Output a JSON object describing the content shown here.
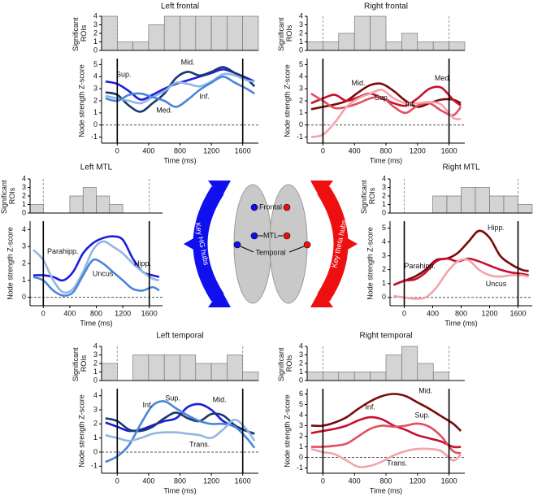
{
  "chart_data": [
    {
      "type": "histogram",
      "title": "Left frontal",
      "ylabel": "Significant ROIs",
      "bins": [
        -200,
        0,
        200,
        400,
        600,
        800,
        1000,
        1200,
        1400,
        1600,
        1800
      ],
      "values": [
        4,
        1,
        1,
        3,
        4,
        4,
        4,
        4,
        4,
        4
      ],
      "color": "#d4d4d4",
      "ylim": [
        0,
        4
      ],
      "yticks": [
        0,
        1,
        2,
        3,
        4
      ]
    },
    {
      "type": "line",
      "xlabel": "Time (ms)",
      "ylabel": "Node strength Z-score",
      "x": [
        -150,
        0,
        150,
        300,
        450,
        600,
        750,
        900,
        1050,
        1200,
        1350,
        1500,
        1650,
        1750
      ],
      "xlim": [
        -200,
        1800
      ],
      "xticks": [
        0,
        400,
        800,
        1200,
        1600
      ],
      "ylim": [
        -1.5,
        5.5
      ],
      "yticks": [
        -1,
        0,
        1,
        2,
        3,
        4,
        5
      ],
      "series": [
        {
          "name": "Sup.",
          "color": "#1c1ce0",
          "values": [
            3.6,
            3.4,
            2.8,
            2.1,
            2.5,
            3.0,
            3.4,
            3.7,
            4.0,
            4.3,
            4.6,
            4.3,
            3.9,
            3.6
          ]
        },
        {
          "name": "Mid.",
          "color": "#17386e",
          "values": [
            2.7,
            2.5,
            1.6,
            1.1,
            1.8,
            2.6,
            3.9,
            4.4,
            4.1,
            4.4,
            4.8,
            4.3,
            3.8,
            3.2
          ]
        },
        {
          "name": "Inf.",
          "color": "#93b6e2",
          "values": [
            2.4,
            2.2,
            2.0,
            1.8,
            2.3,
            2.8,
            3.5,
            3.4,
            3.2,
            3.6,
            4.2,
            4.1,
            3.7,
            3.6
          ]
        },
        {
          "name": "Med.",
          "color": "#4a86d8",
          "values": [
            2.2,
            2.0,
            2.5,
            2.6,
            2.3,
            2.0,
            1.5,
            2.1,
            2.9,
            3.5,
            4.0,
            3.5,
            3.0,
            2.6
          ]
        }
      ]
    },
    {
      "type": "histogram",
      "title": "Right frontal",
      "ylabel": "Significant ROIs",
      "bins": [
        -200,
        0,
        200,
        400,
        600,
        800,
        1000,
        1200,
        1400,
        1600,
        1800
      ],
      "values": [
        1,
        1,
        2,
        4,
        4,
        1,
        2,
        1,
        1,
        1
      ],
      "color": "#d4d4d4",
      "ylim": [
        0,
        4
      ],
      "yticks": [
        0,
        1,
        2,
        3,
        4
      ]
    },
    {
      "type": "line",
      "xlabel": "Time (ms)",
      "ylabel": "Node strength Z-score",
      "x": [
        -150,
        0,
        150,
        300,
        450,
        600,
        750,
        900,
        1050,
        1200,
        1350,
        1500,
        1650,
        1750
      ],
      "xlim": [
        -200,
        1800
      ],
      "xticks": [
        0,
        400,
        800,
        1200,
        1600
      ],
      "ylim": [
        -1.5,
        5.5
      ],
      "yticks": [
        -1,
        0,
        1,
        2,
        3,
        4,
        5
      ],
      "series": [
        {
          "name": "Mid.",
          "color": "#7a0a0a",
          "values": [
            1.3,
            1.5,
            1.7,
            2.0,
            2.7,
            3.3,
            3.4,
            2.8,
            2.0,
            1.5,
            1.8,
            2.1,
            2.1,
            1.8
          ]
        },
        {
          "name": "Med.",
          "color": "#c8102e",
          "values": [
            1.8,
            2.2,
            2.5,
            2.0,
            2.3,
            2.6,
            2.2,
            1.8,
            1.6,
            2.2,
            3.0,
            3.1,
            2.1,
            1.6
          ]
        },
        {
          "name": "Inf.",
          "color": "#e0505e",
          "values": [
            2.6,
            2.0,
            1.4,
            1.5,
            1.8,
            2.2,
            2.3,
            1.5,
            1.0,
            1.6,
            1.8,
            1.2,
            0.8,
            1.5
          ]
        },
        {
          "name": "Sup.",
          "color": "#f4a3aa",
          "values": [
            -1.0,
            -0.8,
            0.2,
            1.5,
            2.2,
            2.6,
            2.9,
            2.2,
            1.8,
            1.8,
            1.9,
            1.7,
            0.6,
            0.5
          ]
        }
      ]
    },
    {
      "type": "histogram",
      "title": "Left MTL",
      "ylabel": "Significant ROIs",
      "bins": [
        -200,
        0,
        200,
        400,
        600,
        800,
        1000,
        1200,
        1400,
        1600,
        1800
      ],
      "values": [
        1,
        0,
        0,
        2,
        3,
        2,
        1,
        0,
        0,
        0
      ],
      "color": "#d4d4d4",
      "ylim": [
        0,
        4
      ],
      "yticks": [
        0,
        1,
        2,
        3,
        4
      ]
    },
    {
      "type": "line",
      "xlabel": "Time (ms)",
      "ylabel": "Node strength Z-score",
      "x": [
        -150,
        0,
        150,
        300,
        450,
        600,
        750,
        900,
        1050,
        1200,
        1350,
        1500,
        1650,
        1750
      ],
      "xlim": [
        -200,
        1800
      ],
      "xticks": [
        0,
        400,
        800,
        1200,
        1600
      ],
      "ylim": [
        -0.5,
        4.5
      ],
      "yticks": [
        0,
        1,
        2,
        3,
        4
      ],
      "series": [
        {
          "name": "Hipp.",
          "color": "#1c1ce0",
          "values": [
            1.3,
            1.3,
            1.2,
            1.0,
            1.5,
            2.6,
            3.2,
            3.5,
            3.6,
            3.4,
            2.3,
            1.5,
            1.3,
            1.2
          ]
        },
        {
          "name": "Parahipp.",
          "color": "#93b6e2",
          "values": [
            2.8,
            2.2,
            1.0,
            0.3,
            0.5,
            1.5,
            2.8,
            3.3,
            3.0,
            2.6,
            2.0,
            1.5,
            1.1,
            1.0
          ]
        },
        {
          "name": "Uncus",
          "color": "#4a86d8",
          "values": [
            1.2,
            1.0,
            0.4,
            0.1,
            0.3,
            1.3,
            2.2,
            2.0,
            1.5,
            1.0,
            0.5,
            0.4,
            0.6,
            0.4
          ]
        }
      ]
    },
    {
      "type": "histogram",
      "title": "Right MTL",
      "ylabel": "Significant ROIs",
      "bins": [
        -200,
        0,
        200,
        400,
        600,
        800,
        1000,
        1200,
        1400,
        1600,
        1800
      ],
      "values": [
        0,
        0,
        0,
        2,
        2,
        3,
        3,
        2,
        2,
        1
      ],
      "color": "#d4d4d4",
      "ylim": [
        0,
        4
      ],
      "yticks": [
        0,
        1,
        2,
        3,
        4
      ]
    },
    {
      "type": "line",
      "xlabel": "Time (ms)",
      "ylabel": "Node strength Z-score",
      "x": [
        -150,
        0,
        150,
        300,
        450,
        600,
        750,
        900,
        1050,
        1200,
        1350,
        1500,
        1650,
        1750
      ],
      "xlim": [
        -200,
        1800
      ],
      "xticks": [
        0,
        400,
        800,
        1200,
        1600
      ],
      "ylim": [
        -0.6,
        5.5
      ],
      "yticks": [
        0,
        1,
        2,
        3,
        4,
        5
      ],
      "series": [
        {
          "name": "Hipp.",
          "color": "#7a0a0a",
          "values": [
            0.9,
            1.2,
            1.5,
            2.0,
            2.7,
            2.8,
            3.2,
            4.0,
            4.8,
            4.3,
            3.0,
            2.4,
            2.0,
            1.9
          ]
        },
        {
          "name": "Parahipp.",
          "color": "#c8102e",
          "values": [
            0.9,
            1.2,
            1.3,
            1.8,
            2.6,
            2.8,
            2.6,
            2.8,
            2.6,
            2.3,
            2.0,
            1.8,
            1.7,
            1.6
          ]
        },
        {
          "name": "Uncus",
          "color": "#f4a3aa",
          "values": [
            0.1,
            0.0,
            -0.1,
            0.0,
            0.7,
            1.8,
            2.6,
            2.7,
            2.0,
            1.6,
            1.5,
            1.6,
            1.6,
            1.5
          ]
        }
      ]
    },
    {
      "type": "histogram",
      "title": "Left temporal",
      "ylabel": "Significant ROIs",
      "bins": [
        -200,
        0,
        200,
        400,
        600,
        800,
        1000,
        1200,
        1400,
        1600,
        1800
      ],
      "values": [
        2,
        0,
        3,
        3,
        3,
        3,
        2,
        2,
        3,
        1
      ],
      "color": "#d4d4d4",
      "ylim": [
        0,
        4
      ],
      "yticks": [
        0,
        1,
        2,
        3,
        4
      ]
    },
    {
      "type": "line",
      "xlabel": "Time (ms)",
      "ylabel": "Node strength Z-score",
      "x": [
        -150,
        0,
        150,
        300,
        450,
        600,
        750,
        900,
        1050,
        1200,
        1350,
        1500,
        1650,
        1750
      ],
      "xlim": [
        -200,
        1800
      ],
      "xticks": [
        0,
        400,
        800,
        1200,
        1600
      ],
      "ylim": [
        -1.5,
        4.5
      ],
      "yticks": [
        -1,
        0,
        1,
        2,
        3,
        4
      ],
      "series": [
        {
          "name": "Mid.",
          "color": "#1c1ce0",
          "values": [
            2.1,
            1.8,
            1.5,
            1.6,
            1.9,
            2.2,
            2.4,
            3.2,
            3.4,
            3.0,
            2.2,
            1.8,
            1.5,
            1.3
          ]
        },
        {
          "name": "Inf.",
          "color": "#17386e",
          "values": [
            2.4,
            2.2,
            1.6,
            1.5,
            1.8,
            2.4,
            2.8,
            2.4,
            2.2,
            2.7,
            2.6,
            1.9,
            1.5,
            1.3
          ]
        },
        {
          "name": "Sup.",
          "color": "#4a86d8",
          "values": [
            -0.7,
            -0.3,
            0.5,
            2.0,
            3.3,
            3.6,
            3.1,
            2.6,
            2.2,
            2.0,
            2.0,
            1.8,
            1.0,
            0.3
          ]
        },
        {
          "name": "Trans.",
          "color": "#93b6e2",
          "values": [
            1.2,
            1.0,
            0.8,
            1.0,
            1.3,
            1.4,
            1.4,
            1.3,
            1.2,
            1.0,
            1.6,
            2.3,
            1.6,
            0.8
          ]
        }
      ]
    },
    {
      "type": "histogram",
      "title": "Right temporal",
      "ylabel": "Significant ROIs",
      "bins": [
        -200,
        0,
        200,
        400,
        600,
        800,
        1000,
        1200,
        1400,
        1600,
        1800
      ],
      "values": [
        1,
        1,
        1,
        1,
        1,
        3,
        4,
        2,
        1,
        0
      ],
      "color": "#d4d4d4",
      "ylim": [
        0,
        4
      ],
      "yticks": [
        0,
        1,
        2,
        3,
        4
      ]
    },
    {
      "type": "line",
      "xlabel": "Time (ms)",
      "ylabel": "Node strength Z-score",
      "x": [
        -150,
        0,
        150,
        300,
        450,
        600,
        750,
        900,
        1050,
        1200,
        1350,
        1500,
        1650,
        1750
      ],
      "xlim": [
        -200,
        1800
      ],
      "xticks": [
        0,
        400,
        800,
        1200,
        1600
      ],
      "ylim": [
        -1.5,
        6.5
      ],
      "yticks": [
        -1,
        0,
        1,
        2,
        3,
        4,
        5,
        6
      ],
      "series": [
        {
          "name": "Mid.",
          "color": "#7a0a0a",
          "values": [
            3.0,
            3.0,
            3.3,
            3.8,
            4.6,
            5.3,
            5.8,
            6.0,
            5.8,
            5.2,
            4.6,
            3.9,
            3.2,
            2.5
          ]
        },
        {
          "name": "Inf.",
          "color": "#c8102e",
          "values": [
            2.3,
            2.5,
            2.7,
            3.0,
            3.5,
            3.8,
            3.6,
            3.0,
            2.6,
            2.1,
            1.8,
            1.5,
            1.0,
            1.0
          ]
        },
        {
          "name": "Sup.",
          "color": "#e0505e",
          "values": [
            1.0,
            1.0,
            1.1,
            1.3,
            2.0,
            2.7,
            3.0,
            2.9,
            3.0,
            3.2,
            2.9,
            2.0,
            0.6,
            0.4
          ]
        },
        {
          "name": "Trans.",
          "color": "#f4a3aa",
          "values": [
            0.8,
            0.5,
            0.3,
            -0.3,
            -0.9,
            -0.8,
            -0.4,
            0.2,
            0.6,
            0.8,
            0.8,
            0.6,
            -0.3,
            0.3
          ]
        }
      ]
    }
  ],
  "diagram": {
    "left_arrow": "Key HG hubs",
    "right_arrow": "Key theta hubs",
    "regions": [
      "Frontal",
      "MTL",
      "Temporal"
    ]
  }
}
